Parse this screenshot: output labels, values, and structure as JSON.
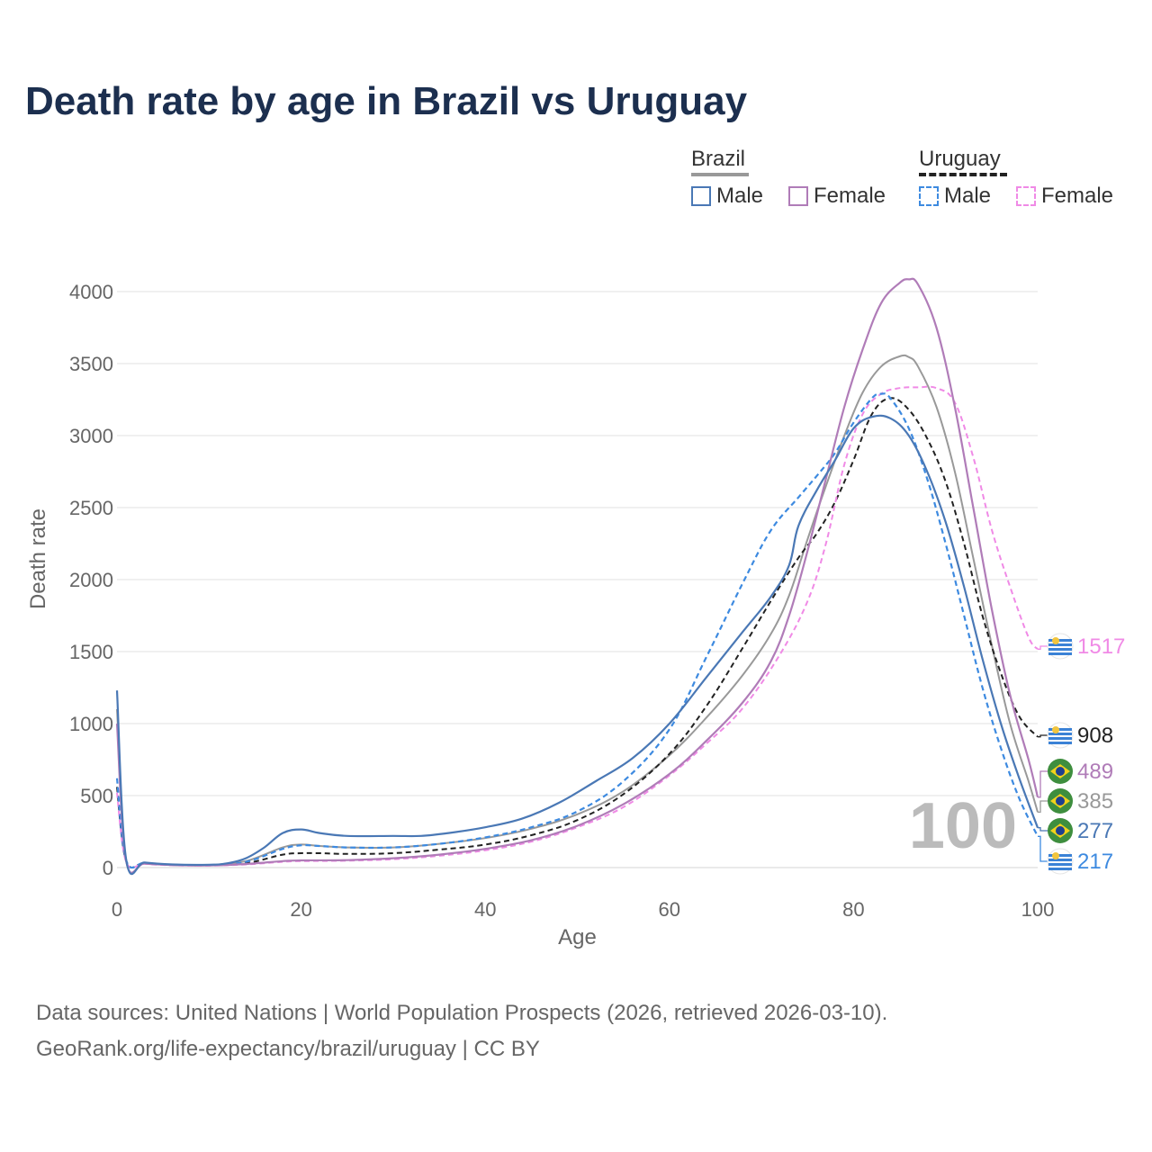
{
  "title": "Death rate by age in Brazil vs Uruguay",
  "legend": {
    "groups": [
      {
        "name": "Brazil",
        "line_color": "#999999",
        "dashed": false,
        "items": [
          {
            "label": "Male",
            "color": "#4a78b5"
          },
          {
            "label": "Female",
            "color": "#b07cb8"
          }
        ]
      },
      {
        "name": "Uruguay",
        "line_color": "#222222",
        "dashed": true,
        "items": [
          {
            "label": "Male",
            "color": "#3d8ae0"
          },
          {
            "label": "Female",
            "color": "#f08ae6"
          }
        ]
      }
    ]
  },
  "sources": {
    "line1": "Data sources: United Nations | World Population Prospects (2026, retrieved 2026-03-10).",
    "line2": "GeoRank.org/life-expectancy/brazil/uruguay | CC BY"
  },
  "chart_data": {
    "type": "line",
    "title": "Death rate by age in Brazil vs Uruguay",
    "xlabel": "Age",
    "ylabel": "Death rate",
    "xlim": [
      0,
      100
    ],
    "ylim": [
      0,
      4200
    ],
    "x_ticks": [
      0,
      20,
      40,
      60,
      80,
      100
    ],
    "y_ticks": [
      0,
      500,
      1000,
      1500,
      2000,
      2500,
      3000,
      3500,
      4000
    ],
    "grid": true,
    "watermark": "100",
    "end_labels": [
      {
        "value": "1517",
        "color": "#f08ae6",
        "flag": "uruguay"
      },
      {
        "value": "908",
        "color": "#222222",
        "flag": "uruguay"
      },
      {
        "value": "489",
        "color": "#b07cb8",
        "flag": "brazil"
      },
      {
        "value": "385",
        "color": "#999999",
        "flag": "brazil"
      },
      {
        "value": "277",
        "color": "#4a78b5",
        "flag": "brazil"
      },
      {
        "value": "217",
        "color": "#3d8ae0",
        "flag": "uruguay"
      }
    ],
    "series": [
      {
        "name": "Brazil Male",
        "color": "#4a78b5",
        "dashed": false,
        "width": 2.2,
        "points": [
          [
            0,
            1230
          ],
          [
            1,
            55
          ],
          [
            3,
            35
          ],
          [
            6,
            22
          ],
          [
            10,
            20
          ],
          [
            12,
            30
          ],
          [
            14,
            65
          ],
          [
            16,
            140
          ],
          [
            18,
            240
          ],
          [
            20,
            265
          ],
          [
            22,
            240
          ],
          [
            25,
            220
          ],
          [
            30,
            220
          ],
          [
            33,
            220
          ],
          [
            36,
            240
          ],
          [
            40,
            280
          ],
          [
            44,
            340
          ],
          [
            48,
            450
          ],
          [
            52,
            600
          ],
          [
            56,
            760
          ],
          [
            60,
            1000
          ],
          [
            64,
            1320
          ],
          [
            68,
            1640
          ],
          [
            71,
            1880
          ],
          [
            73,
            2100
          ],
          [
            74,
            2370
          ],
          [
            76,
            2620
          ],
          [
            78,
            2830
          ],
          [
            80,
            3050
          ],
          [
            82,
            3130
          ],
          [
            84,
            3120
          ],
          [
            86,
            3000
          ],
          [
            88,
            2750
          ],
          [
            90,
            2400
          ],
          [
            92,
            1950
          ],
          [
            94,
            1450
          ],
          [
            96,
            1000
          ],
          [
            98,
            620
          ],
          [
            100,
            277
          ]
        ]
      },
      {
        "name": "Brazil Female",
        "color": "#b07cb8",
        "dashed": false,
        "width": 2.2,
        "points": [
          [
            0,
            1000
          ],
          [
            1,
            45
          ],
          [
            3,
            28
          ],
          [
            6,
            18
          ],
          [
            10,
            15
          ],
          [
            14,
            25
          ],
          [
            18,
            45
          ],
          [
            20,
            50
          ],
          [
            25,
            52
          ],
          [
            30,
            65
          ],
          [
            35,
            90
          ],
          [
            40,
            130
          ],
          [
            45,
            190
          ],
          [
            50,
            290
          ],
          [
            55,
            440
          ],
          [
            60,
            650
          ],
          [
            64,
            880
          ],
          [
            68,
            1150
          ],
          [
            71,
            1430
          ],
          [
            73,
            1750
          ],
          [
            75,
            2200
          ],
          [
            77,
            2700
          ],
          [
            79,
            3200
          ],
          [
            81,
            3600
          ],
          [
            83,
            3920
          ],
          [
            85,
            4060
          ],
          [
            86,
            4085
          ],
          [
            87,
            4050
          ],
          [
            89,
            3750
          ],
          [
            91,
            3200
          ],
          [
            93,
            2500
          ],
          [
            95,
            1800
          ],
          [
            97,
            1200
          ],
          [
            99,
            750
          ],
          [
            100,
            489
          ]
        ]
      },
      {
        "name": "Brazil Total",
        "color": "#999999",
        "dashed": false,
        "width": 2.0,
        "points": [
          [
            0,
            1100
          ],
          [
            1,
            50
          ],
          [
            3,
            32
          ],
          [
            6,
            20
          ],
          [
            10,
            18
          ],
          [
            14,
            45
          ],
          [
            18,
            140
          ],
          [
            20,
            160
          ],
          [
            22,
            150
          ],
          [
            25,
            140
          ],
          [
            30,
            140
          ],
          [
            35,
            165
          ],
          [
            40,
            205
          ],
          [
            45,
            270
          ],
          [
            50,
            370
          ],
          [
            55,
            530
          ],
          [
            60,
            780
          ],
          [
            64,
            1040
          ],
          [
            68,
            1340
          ],
          [
            71,
            1620
          ],
          [
            73,
            1890
          ],
          [
            75,
            2280
          ],
          [
            77,
            2650
          ],
          [
            79,
            3000
          ],
          [
            81,
            3300
          ],
          [
            83,
            3480
          ],
          [
            85,
            3550
          ],
          [
            86,
            3545
          ],
          [
            87,
            3480
          ],
          [
            89,
            3200
          ],
          [
            91,
            2750
          ],
          [
            93,
            2150
          ],
          [
            95,
            1550
          ],
          [
            97,
            1000
          ],
          [
            99,
            600
          ],
          [
            100,
            385
          ]
        ]
      },
      {
        "name": "Uruguay Male",
        "color": "#3d8ae0",
        "dashed": true,
        "width": 2.2,
        "points": [
          [
            0,
            620
          ],
          [
            1,
            50
          ],
          [
            3,
            32
          ],
          [
            6,
            20
          ],
          [
            10,
            18
          ],
          [
            14,
            40
          ],
          [
            18,
            130
          ],
          [
            20,
            155
          ],
          [
            22,
            150
          ],
          [
            25,
            140
          ],
          [
            30,
            140
          ],
          [
            35,
            165
          ],
          [
            40,
            210
          ],
          [
            45,
            280
          ],
          [
            50,
            390
          ],
          [
            55,
            600
          ],
          [
            60,
            960
          ],
          [
            64,
            1460
          ],
          [
            68,
            1980
          ],
          [
            71,
            2340
          ],
          [
            74,
            2570
          ],
          [
            76,
            2720
          ],
          [
            78,
            2880
          ],
          [
            80,
            3090
          ],
          [
            82,
            3260
          ],
          [
            83,
            3290
          ],
          [
            84,
            3260
          ],
          [
            86,
            3050
          ],
          [
            88,
            2700
          ],
          [
            90,
            2250
          ],
          [
            92,
            1750
          ],
          [
            94,
            1250
          ],
          [
            96,
            830
          ],
          [
            98,
            480
          ],
          [
            100,
            217
          ]
        ]
      },
      {
        "name": "Uruguay Female",
        "color": "#f08ae6",
        "dashed": true,
        "width": 2.0,
        "points": [
          [
            0,
            520
          ],
          [
            1,
            40
          ],
          [
            3,
            26
          ],
          [
            6,
            16
          ],
          [
            10,
            14
          ],
          [
            14,
            22
          ],
          [
            18,
            40
          ],
          [
            20,
            45
          ],
          [
            25,
            48
          ],
          [
            30,
            58
          ],
          [
            35,
            82
          ],
          [
            40,
            120
          ],
          [
            45,
            180
          ],
          [
            50,
            280
          ],
          [
            55,
            420
          ],
          [
            60,
            640
          ],
          [
            64,
            860
          ],
          [
            68,
            1110
          ],
          [
            72,
            1480
          ],
          [
            75,
            1850
          ],
          [
            77,
            2250
          ],
          [
            79,
            2800
          ],
          [
            81,
            3150
          ],
          [
            83,
            3290
          ],
          [
            85,
            3330
          ],
          [
            87,
            3335
          ],
          [
            89,
            3330
          ],
          [
            91,
            3230
          ],
          [
            93,
            2850
          ],
          [
            95,
            2350
          ],
          [
            97,
            1950
          ],
          [
            99,
            1600
          ],
          [
            100,
            1517
          ]
        ]
      },
      {
        "name": "Uruguay Total",
        "color": "#222222",
        "dashed": true,
        "width": 2.0,
        "points": [
          [
            0,
            560
          ],
          [
            1,
            45
          ],
          [
            3,
            30
          ],
          [
            6,
            18
          ],
          [
            10,
            16
          ],
          [
            14,
            30
          ],
          [
            18,
            90
          ],
          [
            20,
            100
          ],
          [
            22,
            100
          ],
          [
            25,
            95
          ],
          [
            30,
            100
          ],
          [
            35,
            125
          ],
          [
            40,
            160
          ],
          [
            45,
            225
          ],
          [
            50,
            330
          ],
          [
            55,
            510
          ],
          [
            60,
            790
          ],
          [
            64,
            1120
          ],
          [
            68,
            1530
          ],
          [
            71,
            1850
          ],
          [
            74,
            2150
          ],
          [
            76,
            2320
          ],
          [
            78,
            2540
          ],
          [
            80,
            2830
          ],
          [
            82,
            3150
          ],
          [
            84,
            3260
          ],
          [
            86,
            3180
          ],
          [
            88,
            2980
          ],
          [
            90,
            2680
          ],
          [
            92,
            2250
          ],
          [
            94,
            1750
          ],
          [
            96,
            1350
          ],
          [
            98,
            1050
          ],
          [
            100,
            908
          ]
        ]
      }
    ]
  }
}
